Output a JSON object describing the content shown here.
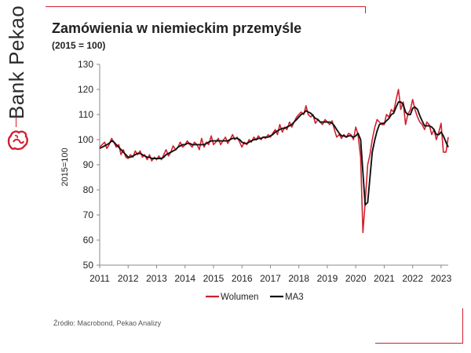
{
  "brand": {
    "name": "Bank Pekao"
  },
  "title": "Zamówienia w niemieckim przemyśle",
  "subtitle": "(2015 = 100)",
  "source": "Źródło: Macrobond, Pekao Analizy",
  "colors": {
    "accent": "#d1202f",
    "series_red": "#d1202f",
    "series_black": "#111111"
  },
  "chart_data": {
    "type": "line",
    "title": "Zamówienia w niemieckim przemyśle",
    "subtitle": "(2015 = 100)",
    "xlabel": "",
    "ylabel": "2015=100",
    "xlim": [
      2011.0,
      2023.25
    ],
    "ylim": [
      50,
      130
    ],
    "yticks": [
      50,
      60,
      70,
      80,
      90,
      100,
      110,
      120,
      130
    ],
    "xticks": [
      "2011",
      "2012",
      "2013",
      "2014",
      "2015",
      "2016",
      "2017",
      "2018",
      "2019",
      "2020",
      "2021",
      "2022",
      "2023"
    ],
    "grid": false,
    "legend": "bottom",
    "series": [
      {
        "name": "Wolumen",
        "color": "#d1202f",
        "points": [
          [
            2011.0,
            97
          ],
          [
            2011.17,
            99
          ],
          [
            2011.25,
            96.5
          ],
          [
            2011.33,
            98
          ],
          [
            2011.42,
            100.5
          ],
          [
            2011.5,
            99
          ],
          [
            2011.58,
            97
          ],
          [
            2011.67,
            98
          ],
          [
            2011.75,
            94
          ],
          [
            2011.83,
            96
          ],
          [
            2011.92,
            93
          ],
          [
            2012.0,
            92.5
          ],
          [
            2012.08,
            94
          ],
          [
            2012.17,
            93
          ],
          [
            2012.25,
            95.5
          ],
          [
            2012.33,
            94
          ],
          [
            2012.42,
            95.5
          ],
          [
            2012.5,
            93
          ],
          [
            2012.58,
            94
          ],
          [
            2012.67,
            92
          ],
          [
            2012.75,
            94
          ],
          [
            2012.83,
            91.5
          ],
          [
            2012.92,
            93
          ],
          [
            2013.0,
            92
          ],
          [
            2013.08,
            93.5
          ],
          [
            2013.17,
            92
          ],
          [
            2013.25,
            94
          ],
          [
            2013.33,
            96
          ],
          [
            2013.42,
            93.5
          ],
          [
            2013.5,
            95
          ],
          [
            2013.58,
            97.5
          ],
          [
            2013.67,
            96
          ],
          [
            2013.75,
            97
          ],
          [
            2013.83,
            99
          ],
          [
            2013.92,
            97
          ],
          [
            2014.0,
            98
          ],
          [
            2014.08,
            99.5
          ],
          [
            2014.17,
            98
          ],
          [
            2014.25,
            97
          ],
          [
            2014.33,
            99
          ],
          [
            2014.42,
            98
          ],
          [
            2014.5,
            96
          ],
          [
            2014.58,
            100.5
          ],
          [
            2014.67,
            97
          ],
          [
            2014.75,
            99
          ],
          [
            2014.83,
            98
          ],
          [
            2014.92,
            101.5
          ],
          [
            2015.0,
            98
          ],
          [
            2015.08,
            99
          ],
          [
            2015.17,
            100.5
          ],
          [
            2015.25,
            98
          ],
          [
            2015.33,
            99.5
          ],
          [
            2015.42,
            101
          ],
          [
            2015.5,
            98.5
          ],
          [
            2015.58,
            100
          ],
          [
            2015.67,
            102
          ],
          [
            2015.75,
            100
          ],
          [
            2015.83,
            101
          ],
          [
            2015.92,
            99
          ],
          [
            2016.0,
            97
          ],
          [
            2016.08,
            99
          ],
          [
            2016.17,
            98
          ],
          [
            2016.25,
            100
          ],
          [
            2016.33,
            99
          ],
          [
            2016.42,
            101
          ],
          [
            2016.5,
            100
          ],
          [
            2016.58,
            101.5
          ],
          [
            2016.67,
            100
          ],
          [
            2016.75,
            101
          ],
          [
            2016.83,
            100.5
          ],
          [
            2016.92,
            102
          ],
          [
            2017.0,
            101
          ],
          [
            2017.08,
            102.5
          ],
          [
            2017.17,
            104
          ],
          [
            2017.25,
            102
          ],
          [
            2017.33,
            106
          ],
          [
            2017.42,
            103
          ],
          [
            2017.5,
            105
          ],
          [
            2017.58,
            104
          ],
          [
            2017.67,
            107
          ],
          [
            2017.75,
            105
          ],
          [
            2017.83,
            107
          ],
          [
            2017.92,
            109
          ],
          [
            2018.0,
            110
          ],
          [
            2018.08,
            111
          ],
          [
            2018.17,
            110
          ],
          [
            2018.25,
            113.5
          ],
          [
            2018.33,
            110
          ],
          [
            2018.42,
            109
          ],
          [
            2018.5,
            110
          ],
          [
            2018.58,
            106.5
          ],
          [
            2018.67,
            108
          ],
          [
            2018.75,
            107
          ],
          [
            2018.83,
            106
          ],
          [
            2018.92,
            108
          ],
          [
            2019.0,
            107
          ],
          [
            2019.08,
            106
          ],
          [
            2019.17,
            107.5
          ],
          [
            2019.25,
            104
          ],
          [
            2019.33,
            101
          ],
          [
            2019.42,
            102
          ],
          [
            2019.5,
            100.5
          ],
          [
            2019.58,
            102
          ],
          [
            2019.67,
            101
          ],
          [
            2019.75,
            102.5
          ],
          [
            2019.83,
            102
          ],
          [
            2019.92,
            100
          ],
          [
            2020.0,
            105
          ],
          [
            2020.08,
            102
          ],
          [
            2020.17,
            93
          ],
          [
            2020.25,
            63
          ],
          [
            2020.33,
            75
          ],
          [
            2020.42,
            90
          ],
          [
            2020.5,
            94
          ],
          [
            2020.58,
            100
          ],
          [
            2020.67,
            105
          ],
          [
            2020.75,
            108
          ],
          [
            2020.83,
            107
          ],
          [
            2020.92,
            106
          ],
          [
            2021.0,
            106
          ],
          [
            2021.08,
            110
          ],
          [
            2021.17,
            109
          ],
          [
            2021.25,
            112
          ],
          [
            2021.33,
            111
          ],
          [
            2021.42,
            116
          ],
          [
            2021.5,
            120
          ],
          [
            2021.58,
            112
          ],
          [
            2021.67,
            115
          ],
          [
            2021.75,
            106
          ],
          [
            2021.83,
            110
          ],
          [
            2021.92,
            112
          ],
          [
            2022.0,
            116
          ],
          [
            2022.08,
            112
          ],
          [
            2022.17,
            109
          ],
          [
            2022.25,
            107
          ],
          [
            2022.33,
            106
          ],
          [
            2022.42,
            104
          ],
          [
            2022.5,
            107
          ],
          [
            2022.58,
            106
          ],
          [
            2022.67,
            102
          ],
          [
            2022.75,
            104
          ],
          [
            2022.83,
            100
          ],
          [
            2022.92,
            103
          ],
          [
            2023.0,
            106.5
          ],
          [
            2023.08,
            95
          ],
          [
            2023.17,
            95
          ],
          [
            2023.25,
            101
          ]
        ]
      },
      {
        "name": "MA3",
        "color": "#111111",
        "points": [
          [
            2011.0,
            96.5
          ],
          [
            2011.17,
            97.5
          ],
          [
            2011.25,
            98
          ],
          [
            2011.33,
            98.5
          ],
          [
            2011.42,
            99.5
          ],
          [
            2011.5,
            99
          ],
          [
            2011.58,
            98
          ],
          [
            2011.67,
            97
          ],
          [
            2011.75,
            96
          ],
          [
            2011.83,
            95
          ],
          [
            2011.92,
            94
          ],
          [
            2012.0,
            93
          ],
          [
            2012.08,
            93
          ],
          [
            2012.17,
            93.5
          ],
          [
            2012.25,
            94
          ],
          [
            2012.33,
            94.5
          ],
          [
            2012.42,
            94.5
          ],
          [
            2012.5,
            94
          ],
          [
            2012.58,
            93.5
          ],
          [
            2012.67,
            93
          ],
          [
            2012.75,
            93
          ],
          [
            2012.83,
            92.5
          ],
          [
            2012.92,
            92.5
          ],
          [
            2013.0,
            92.5
          ],
          [
            2013.08,
            92.5
          ],
          [
            2013.17,
            92.5
          ],
          [
            2013.25,
            93
          ],
          [
            2013.33,
            94
          ],
          [
            2013.42,
            94.5
          ],
          [
            2013.5,
            95
          ],
          [
            2013.58,
            95.5
          ],
          [
            2013.67,
            96
          ],
          [
            2013.75,
            97
          ],
          [
            2013.83,
            97.5
          ],
          [
            2013.92,
            98
          ],
          [
            2014.0,
            98
          ],
          [
            2014.08,
            98.5
          ],
          [
            2014.17,
            98.5
          ],
          [
            2014.25,
            98
          ],
          [
            2014.33,
            98
          ],
          [
            2014.42,
            98
          ],
          [
            2014.5,
            98
          ],
          [
            2014.58,
            98
          ],
          [
            2014.67,
            98
          ],
          [
            2014.75,
            98.5
          ],
          [
            2014.83,
            99
          ],
          [
            2014.92,
            99.5
          ],
          [
            2015.0,
            99.5
          ],
          [
            2015.08,
            99.5
          ],
          [
            2015.17,
            99.5
          ],
          [
            2015.25,
            99.5
          ],
          [
            2015.33,
            99.5
          ],
          [
            2015.42,
            99.5
          ],
          [
            2015.5,
            99.5
          ],
          [
            2015.58,
            100
          ],
          [
            2015.67,
            100.5
          ],
          [
            2015.75,
            100.5
          ],
          [
            2015.83,
            100.5
          ],
          [
            2015.92,
            100
          ],
          [
            2016.0,
            99
          ],
          [
            2016.08,
            98.5
          ],
          [
            2016.17,
            98.5
          ],
          [
            2016.25,
            99
          ],
          [
            2016.33,
            99.5
          ],
          [
            2016.42,
            100
          ],
          [
            2016.5,
            100
          ],
          [
            2016.58,
            100.5
          ],
          [
            2016.67,
            100.5
          ],
          [
            2016.75,
            101
          ],
          [
            2016.83,
            101
          ],
          [
            2016.92,
            101
          ],
          [
            2017.0,
            101.5
          ],
          [
            2017.08,
            102
          ],
          [
            2017.17,
            103
          ],
          [
            2017.25,
            103.5
          ],
          [
            2017.33,
            104
          ],
          [
            2017.42,
            104.5
          ],
          [
            2017.5,
            104.5
          ],
          [
            2017.58,
            105
          ],
          [
            2017.67,
            105.5
          ],
          [
            2017.75,
            106
          ],
          [
            2017.83,
            107
          ],
          [
            2017.92,
            108
          ],
          [
            2018.0,
            109
          ],
          [
            2018.08,
            110
          ],
          [
            2018.17,
            110.5
          ],
          [
            2018.25,
            111.5
          ],
          [
            2018.33,
            111
          ],
          [
            2018.42,
            110.5
          ],
          [
            2018.5,
            109.5
          ],
          [
            2018.58,
            108.5
          ],
          [
            2018.67,
            108
          ],
          [
            2018.75,
            107
          ],
          [
            2018.83,
            107
          ],
          [
            2018.92,
            107
          ],
          [
            2019.0,
            107
          ],
          [
            2019.08,
            107
          ],
          [
            2019.17,
            106.5
          ],
          [
            2019.25,
            105.5
          ],
          [
            2019.33,
            104
          ],
          [
            2019.42,
            102.5
          ],
          [
            2019.5,
            101.5
          ],
          [
            2019.58,
            101.5
          ],
          [
            2019.67,
            101
          ],
          [
            2019.75,
            101.5
          ],
          [
            2019.83,
            101.5
          ],
          [
            2019.92,
            101
          ],
          [
            2020.0,
            101.5
          ],
          [
            2020.08,
            102.5
          ],
          [
            2020.17,
            100
          ],
          [
            2020.25,
            87
          ],
          [
            2020.33,
            74
          ],
          [
            2020.42,
            75
          ],
          [
            2020.5,
            85
          ],
          [
            2020.58,
            95
          ],
          [
            2020.67,
            100
          ],
          [
            2020.75,
            103.5
          ],
          [
            2020.83,
            106
          ],
          [
            2020.92,
            106.5
          ],
          [
            2021.0,
            106.5
          ],
          [
            2021.08,
            107.5
          ],
          [
            2021.17,
            108.5
          ],
          [
            2021.25,
            110
          ],
          [
            2021.33,
            110.5
          ],
          [
            2021.42,
            113
          ],
          [
            2021.5,
            115
          ],
          [
            2021.58,
            115
          ],
          [
            2021.67,
            114
          ],
          [
            2021.75,
            111
          ],
          [
            2021.83,
            110
          ],
          [
            2021.92,
            110
          ],
          [
            2022.0,
            112.5
          ],
          [
            2022.08,
            113
          ],
          [
            2022.17,
            112
          ],
          [
            2022.25,
            109.5
          ],
          [
            2022.33,
            107.5
          ],
          [
            2022.42,
            105.5
          ],
          [
            2022.5,
            105.5
          ],
          [
            2022.58,
            105.5
          ],
          [
            2022.67,
            105
          ],
          [
            2022.75,
            104
          ],
          [
            2022.83,
            102
          ],
          [
            2022.92,
            102
          ],
          [
            2023.0,
            103
          ],
          [
            2023.08,
            101.5
          ],
          [
            2023.17,
            99
          ],
          [
            2023.25,
            97
          ]
        ]
      }
    ]
  }
}
